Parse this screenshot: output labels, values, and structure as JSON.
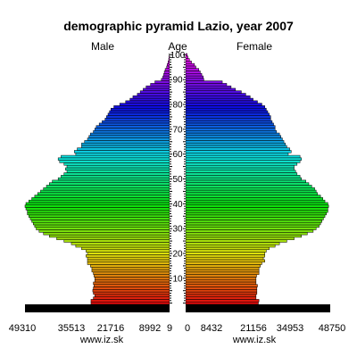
{
  "chart_data": {
    "type": "bar",
    "orientation": "horizontal",
    "title": "demographic pyramid Lazio, year 2007",
    "left_label": "Male",
    "center_label": "Age",
    "right_label": "Female",
    "age_ticks": [
      "10",
      "20",
      "30",
      "40",
      "50",
      "60",
      "70",
      "80",
      "90",
      "100"
    ],
    "male_ticks": [
      "49310",
      "35513",
      "21716",
      "8992",
      "9"
    ],
    "female_ticks": [
      "0",
      "8432",
      "21156",
      "34953",
      "48750"
    ],
    "footer_left": "www.iz.sk",
    "footer_right": "www.iz.sk",
    "axis_max": 49310,
    "ages": [
      0,
      1,
      2,
      3,
      4,
      5,
      6,
      7,
      8,
      9,
      10,
      11,
      12,
      13,
      14,
      15,
      16,
      17,
      18,
      19,
      20,
      21,
      22,
      23,
      24,
      25,
      26,
      27,
      28,
      29,
      30,
      31,
      32,
      33,
      34,
      35,
      36,
      37,
      38,
      39,
      40,
      41,
      42,
      43,
      44,
      45,
      46,
      47,
      48,
      49,
      50,
      51,
      52,
      53,
      54,
      55,
      56,
      57,
      58,
      59,
      60,
      61,
      62,
      63,
      64,
      65,
      66,
      67,
      68,
      69,
      70,
      71,
      72,
      73,
      74,
      75,
      76,
      77,
      78,
      79,
      80,
      81,
      82,
      83,
      84,
      85,
      86,
      87,
      88,
      89,
      90,
      91,
      92,
      93,
      94,
      95,
      96,
      97,
      98,
      99,
      100
    ],
    "series": [
      {
        "name": "Male",
        "values": [
          26800,
          26800,
          26000,
          25500,
          26000,
          26200,
          26000,
          25800,
          26000,
          25500,
          25500,
          25800,
          26000,
          26500,
          26500,
          27000,
          28000,
          28000,
          28000,
          28500,
          28000,
          28500,
          30000,
          32000,
          33500,
          36000,
          38500,
          41000,
          43000,
          44500,
          45500,
          46000,
          46500,
          47000,
          47500,
          48000,
          48500,
          48500,
          49000,
          49310,
          49000,
          48000,
          47000,
          46000,
          45000,
          44000,
          43000,
          42000,
          41000,
          40000,
          38000,
          37000,
          36000,
          35000,
          35500,
          35000,
          36000,
          37500,
          38000,
          37000,
          32000,
          32500,
          31500,
          30000,
          30000,
          29000,
          28000,
          27500,
          27000,
          26000,
          25500,
          25000,
          24000,
          23000,
          22000,
          21500,
          21000,
          20500,
          20000,
          19000,
          17000,
          15000,
          13500,
          12500,
          11000,
          10000,
          9000,
          8000,
          6500,
          5000,
          2800,
          2300,
          2000,
          1800,
          1500,
          1000,
          800,
          500,
          300,
          200,
          100
        ]
      },
      {
        "name": "Female",
        "values": [
          24800,
          25000,
          24000,
          24000,
          24300,
          24300,
          24300,
          24500,
          24000,
          24000,
          24000,
          24200,
          25000,
          25000,
          25000,
          25500,
          26000,
          27000,
          26500,
          27000,
          27000,
          27500,
          28500,
          30500,
          32000,
          34500,
          37000,
          39500,
          41500,
          43500,
          44500,
          45500,
          46000,
          46500,
          47000,
          47500,
          48000,
          48500,
          48500,
          48750,
          48500,
          47500,
          46800,
          46000,
          45000,
          44500,
          44000,
          43000,
          42000,
          41000,
          39500,
          39000,
          38000,
          37500,
          37000,
          37000,
          38000,
          39000,
          39500,
          39000,
          35000,
          36000,
          35500,
          34500,
          34000,
          33500,
          33000,
          32500,
          32000,
          31000,
          30500,
          30500,
          30000,
          29500,
          29000,
          29000,
          28500,
          28000,
          27500,
          27000,
          26000,
          24500,
          23000,
          22000,
          20500,
          19000,
          17000,
          15500,
          14000,
          12500,
          6200,
          6000,
          5500,
          5000,
          4500,
          3500,
          3000,
          2000,
          1300,
          800,
          500
        ]
      }
    ]
  }
}
